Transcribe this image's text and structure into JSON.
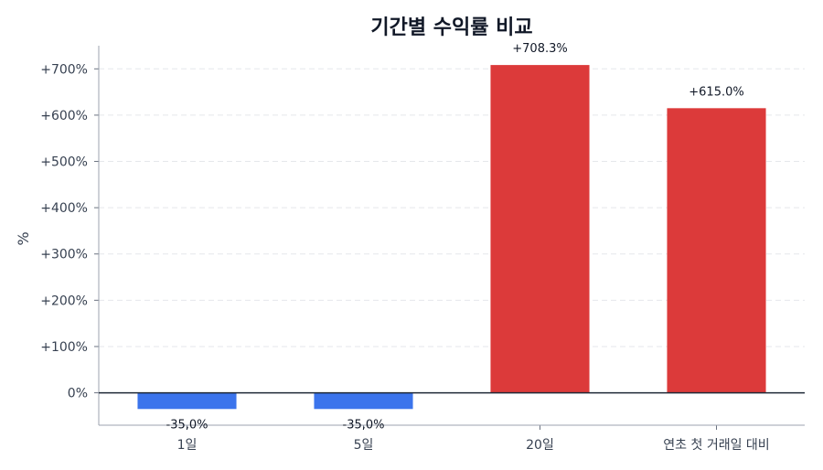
{
  "chart_data": {
    "type": "bar",
    "title": "기간별 수익률 비교",
    "xlabel": "",
    "ylabel": "%",
    "categories": [
      "1일",
      "5일",
      "20일",
      "연초 첫 거래일 대비"
    ],
    "values": [
      -35.0,
      -35.0,
      708.3,
      615.0
    ],
    "data_labels": [
      "-35,0%",
      "-35,0%",
      "+708.3%",
      "+615.0%"
    ],
    "ylim": [
      -70,
      750
    ],
    "yticks": [
      0,
      100,
      200,
      300,
      400,
      500,
      600,
      700
    ],
    "ytick_labels": [
      "0%",
      "+100%",
      "+200%",
      "+300%",
      "+400%",
      "+500%",
      "+600%",
      "+700%"
    ],
    "grid": true,
    "colors": {
      "positive": "#dc3a3a",
      "negative": "#3b74ec",
      "grid": "#e5e7eb",
      "zero_line": "#1f2937"
    }
  }
}
